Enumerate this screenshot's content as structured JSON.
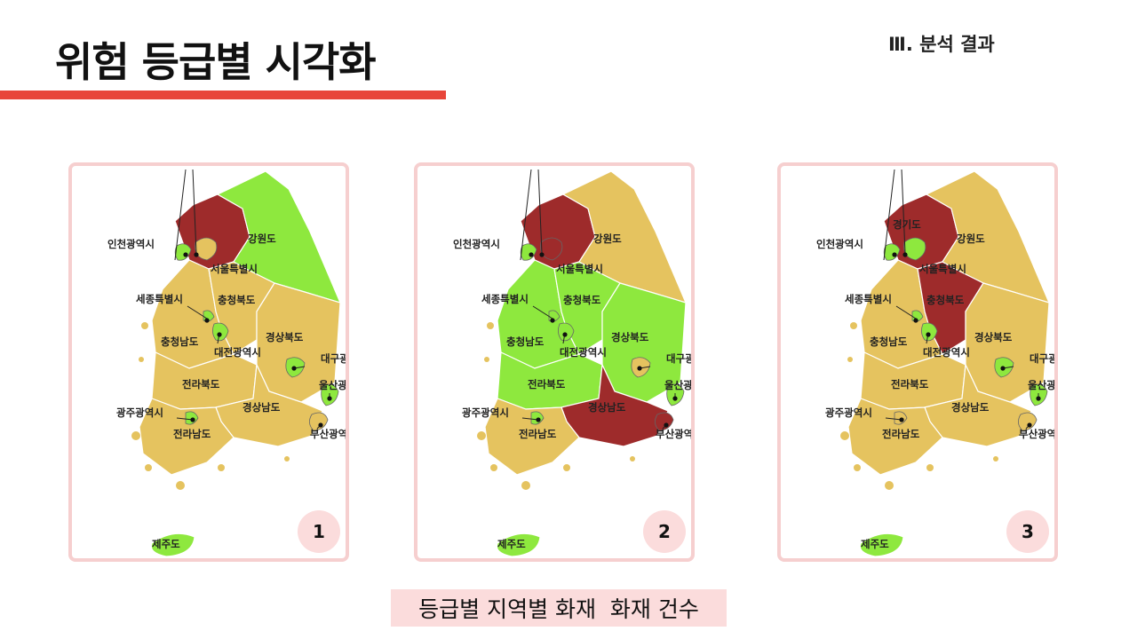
{
  "title": "위험 등급별 시각화",
  "section": "Ⅲ. 분석 결과",
  "caption": "등급별 지역별 화재  화재 건수",
  "colors": {
    "high": "#9e2b2b",
    "medium": "#e5c35f",
    "low": "#8ee83e"
  },
  "labels": {
    "incheon": "인천광역시",
    "seoul": "서울특별시",
    "gangwon": "강원도",
    "gyeonggi": "경기도",
    "sejong": "세종특별시",
    "chungbuk": "충청북도",
    "chungnam": "충청남도",
    "daejeon": "대전광역시",
    "gyeongbuk": "경상북도",
    "daegu": "대구광역시",
    "jeonbuk": "전라북도",
    "ulsan": "울산광역시",
    "gwangju": "광주광역시",
    "gyeongnam": "경상남도",
    "busan": "부산광역시",
    "jeonnam": "전라남도",
    "jeju": "제주도"
  },
  "maps": [
    {
      "number": "1",
      "show_gyeonggi_label": false,
      "fills": {
        "gyeonggi": "high",
        "gangwon": "low",
        "chungbuk": "medium",
        "chungnam": "medium",
        "jeonbuk": "medium",
        "jeonnam": "medium",
        "gyeongbuk": "medium",
        "gyeongnam": "medium",
        "jeju": "low",
        "seoul": "medium",
        "incheon": "low",
        "sejong": "low",
        "daejeon": "low",
        "daegu": "low",
        "gwangju": "low",
        "ulsan": "low",
        "busan": "medium"
      }
    },
    {
      "number": "2",
      "show_gyeonggi_label": false,
      "fills": {
        "gyeonggi": "high",
        "gangwon": "medium",
        "chungbuk": "low",
        "chungnam": "low",
        "jeonbuk": "low",
        "jeonnam": "medium",
        "gyeongbuk": "low",
        "gyeongnam": "high",
        "jeju": "low",
        "seoul": "high",
        "incheon": "low",
        "sejong": "low",
        "daejeon": "low",
        "daegu": "medium",
        "gwangju": "low",
        "ulsan": "low",
        "busan": "high"
      }
    },
    {
      "number": "3",
      "show_gyeonggi_label": true,
      "fills": {
        "gyeonggi": "high",
        "gangwon": "medium",
        "chungbuk": "high",
        "chungnam": "medium",
        "jeonbuk": "medium",
        "jeonnam": "medium",
        "gyeongbuk": "medium",
        "gyeongnam": "medium",
        "jeju": "low",
        "seoul": "low",
        "incheon": "low",
        "sejong": "low",
        "daejeon": "low",
        "daegu": "low",
        "gwangju": "medium",
        "ulsan": "low",
        "busan": "medium"
      }
    }
  ]
}
